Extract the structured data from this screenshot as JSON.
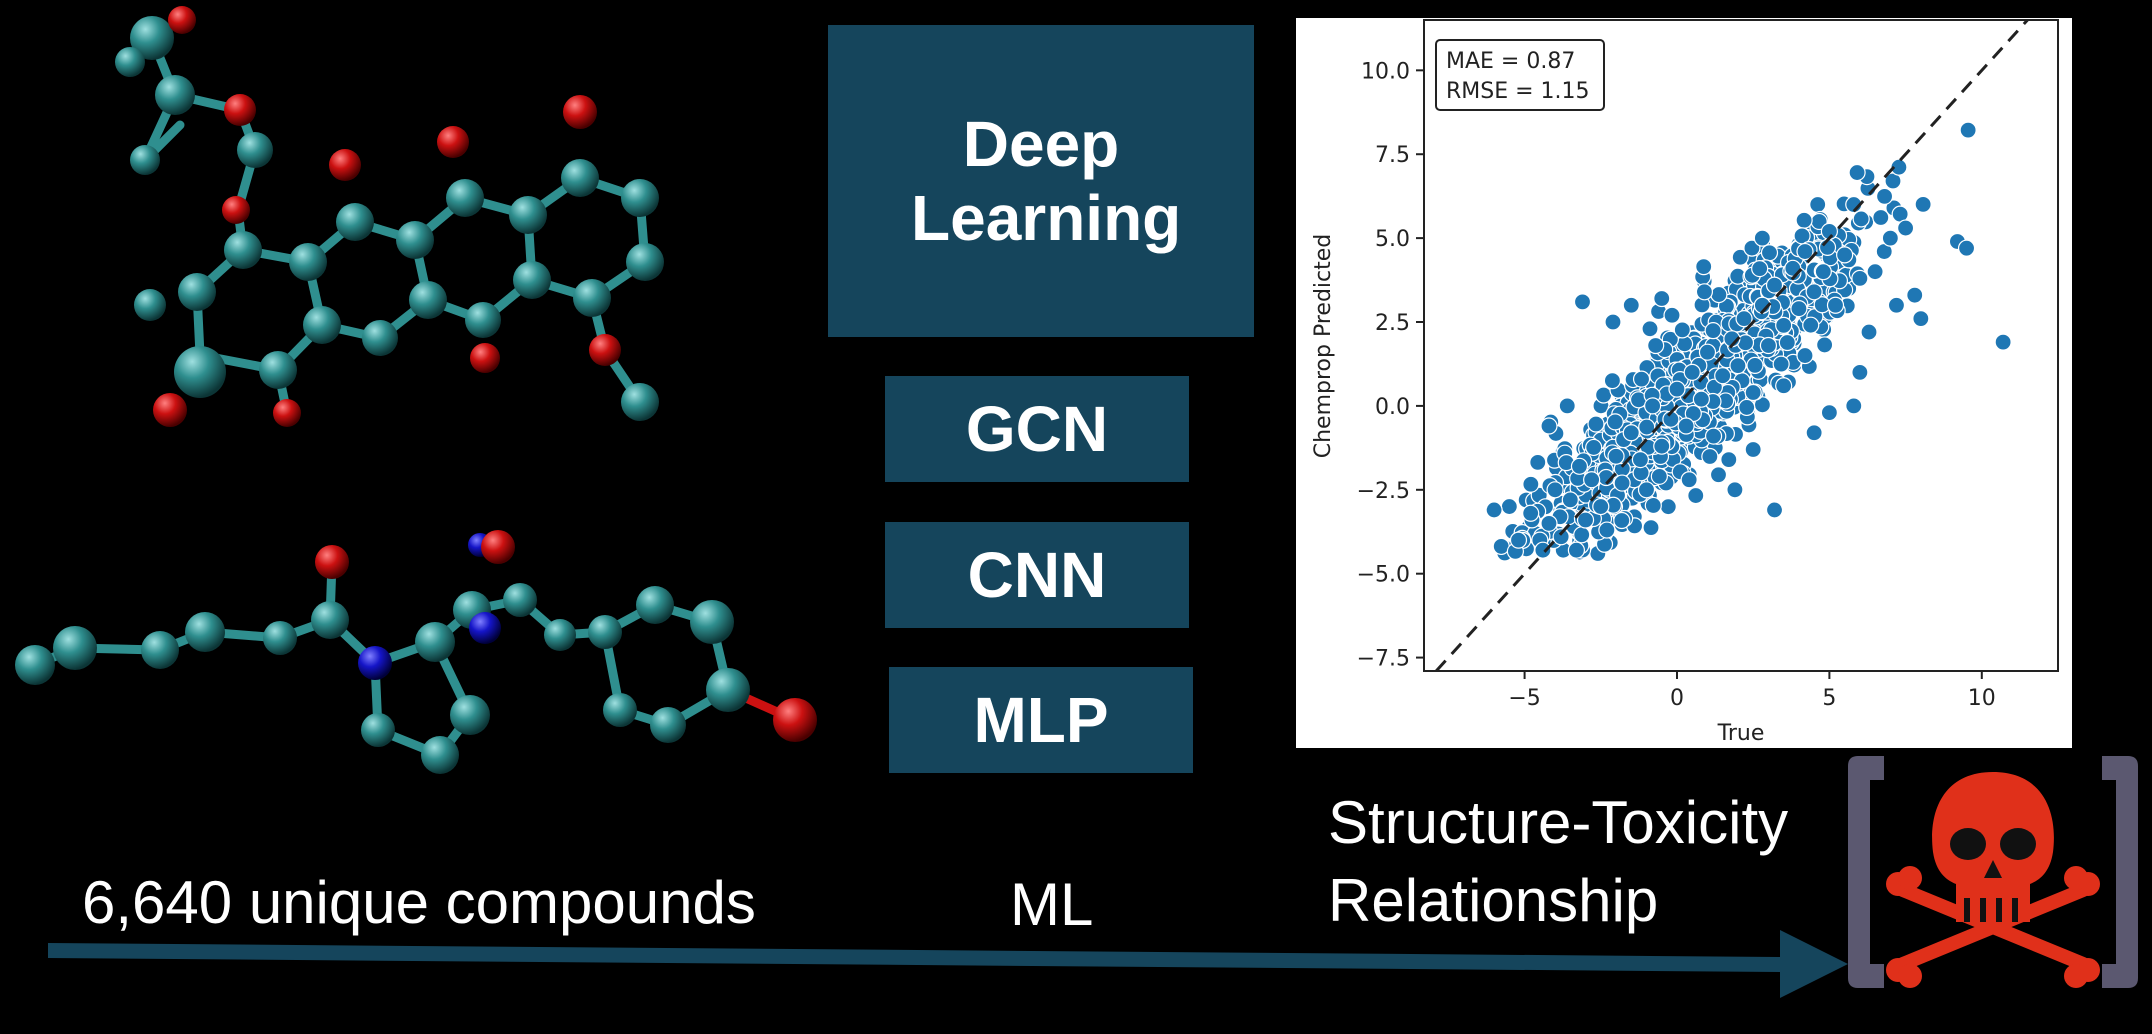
{
  "models": {
    "deep_learning": "Deep Learning",
    "gcn": "GCN",
    "cnn": "CNN",
    "mlp": "MLP"
  },
  "labels": {
    "compounds": "6,640 unique compounds",
    "ml": "ML",
    "relationship_line1": "Structure-Toxicity",
    "relationship_line2": "Relationship"
  },
  "colors": {
    "box": "#15455c",
    "arrow": "#15455c",
    "carbon": "#2f8f8f",
    "oxygen": "#cc1111",
    "nitrogen": "#1515c8",
    "skull": "#e0301a",
    "bracket": "#5b5870",
    "points": "#1f77b4"
  },
  "icons": [
    "molecule-1",
    "molecule-2",
    "skull-crossbones-icon",
    "arrow-right"
  ],
  "chart_data": {
    "type": "scatter",
    "title": "",
    "xlabel": "True",
    "ylabel": "Chemprop Predicted",
    "xlim": [
      -8.3,
      12.5
    ],
    "ylim": [
      -7.9,
      11.5
    ],
    "xticks": [
      -5,
      0,
      5,
      10
    ],
    "xtick_labels": [
      "−5",
      "0",
      "5",
      "10"
    ],
    "yticks": [
      -7.5,
      -5.0,
      -2.5,
      0.0,
      2.5,
      5.0,
      7.5,
      10.0
    ],
    "ytick_labels": [
      "−7.5",
      "−5.0",
      "−2.5",
      "0.0",
      "2.5",
      "5.0",
      "7.5",
      "10.0"
    ],
    "annotation": [
      "MAE = 0.87",
      "RMSE = 1.15"
    ],
    "reference_line": "y = x",
    "grid": false,
    "n_points": 6640,
    "points": [
      [
        -4.5,
        -4.0
      ],
      [
        -4.2,
        -3.5
      ],
      [
        -3.8,
        -3.9
      ],
      [
        -4.8,
        -3.2
      ],
      [
        -3.5,
        -2.8
      ],
      [
        -3.0,
        -3.4
      ],
      [
        -4.0,
        -2.5
      ],
      [
        -5.2,
        -4.0
      ],
      [
        -5.5,
        -3.0
      ],
      [
        -6.0,
        -3.1
      ],
      [
        -3.2,
        -1.8
      ],
      [
        -2.8,
        -2.2
      ],
      [
        -2.5,
        -3.0
      ],
      [
        -2.0,
        -1.5
      ],
      [
        -1.8,
        -2.3
      ],
      [
        -1.5,
        -0.8
      ],
      [
        -1.2,
        -1.6
      ],
      [
        -1.0,
        -2.5
      ],
      [
        -0.8,
        0.0
      ],
      [
        -0.5,
        -1.2
      ],
      [
        -0.2,
        -0.4
      ],
      [
        0.0,
        0.5
      ],
      [
        0.3,
        -0.6
      ],
      [
        0.5,
        1.0
      ],
      [
        0.8,
        0.2
      ],
      [
        1.0,
        1.6
      ],
      [
        1.2,
        -0.9
      ],
      [
        1.5,
        0.9
      ],
      [
        1.8,
        2.0
      ],
      [
        2.0,
        1.2
      ],
      [
        2.2,
        2.6
      ],
      [
        2.5,
        0.4
      ],
      [
        2.8,
        3.0
      ],
      [
        3.0,
        1.8
      ],
      [
        3.2,
        3.6
      ],
      [
        3.5,
        2.4
      ],
      [
        3.8,
        4.1
      ],
      [
        4.0,
        2.9
      ],
      [
        4.2,
        4.6
      ],
      [
        4.5,
        3.4
      ],
      [
        4.8,
        4.0
      ],
      [
        5.0,
        5.2
      ],
      [
        5.2,
        3.0
      ],
      [
        5.5,
        4.5
      ],
      [
        5.8,
        6.0
      ],
      [
        6.0,
        3.8
      ],
      [
        6.3,
        2.2
      ],
      [
        6.5,
        4.0
      ],
      [
        6.8,
        4.6
      ],
      [
        7.0,
        5.0
      ],
      [
        7.2,
        3.0
      ],
      [
        7.5,
        5.3
      ],
      [
        7.8,
        3.3
      ],
      [
        8.0,
        2.6
      ],
      [
        9.2,
        4.9
      ],
      [
        9.5,
        4.7
      ],
      [
        10.7,
        1.9
      ],
      [
        3.2,
        -3.1
      ],
      [
        1.9,
        -2.5
      ],
      [
        -3.1,
        3.1
      ],
      [
        -2.1,
        2.5
      ],
      [
        -3.6,
        0.0
      ],
      [
        -4.2,
        -0.6
      ],
      [
        -1.5,
        3.0
      ],
      [
        -0.5,
        3.2
      ],
      [
        0.9,
        3.4
      ],
      [
        4.5,
        -0.8
      ],
      [
        5.8,
        0.0
      ],
      [
        5.0,
        -0.2
      ],
      [
        2.5,
        -1.3
      ],
      [
        -2.3,
        -3.7
      ],
      [
        -3.3,
        -4.3
      ],
      [
        -4.4,
        -4.3
      ],
      [
        0.4,
        -2.2
      ],
      [
        -0.7,
        1.8
      ],
      [
        1.7,
        -1.6
      ],
      [
        3.5,
        0.6
      ],
      [
        4.2,
        1.5
      ],
      [
        6.0,
        1.0
      ],
      [
        2.8,
        5.0
      ]
    ]
  }
}
